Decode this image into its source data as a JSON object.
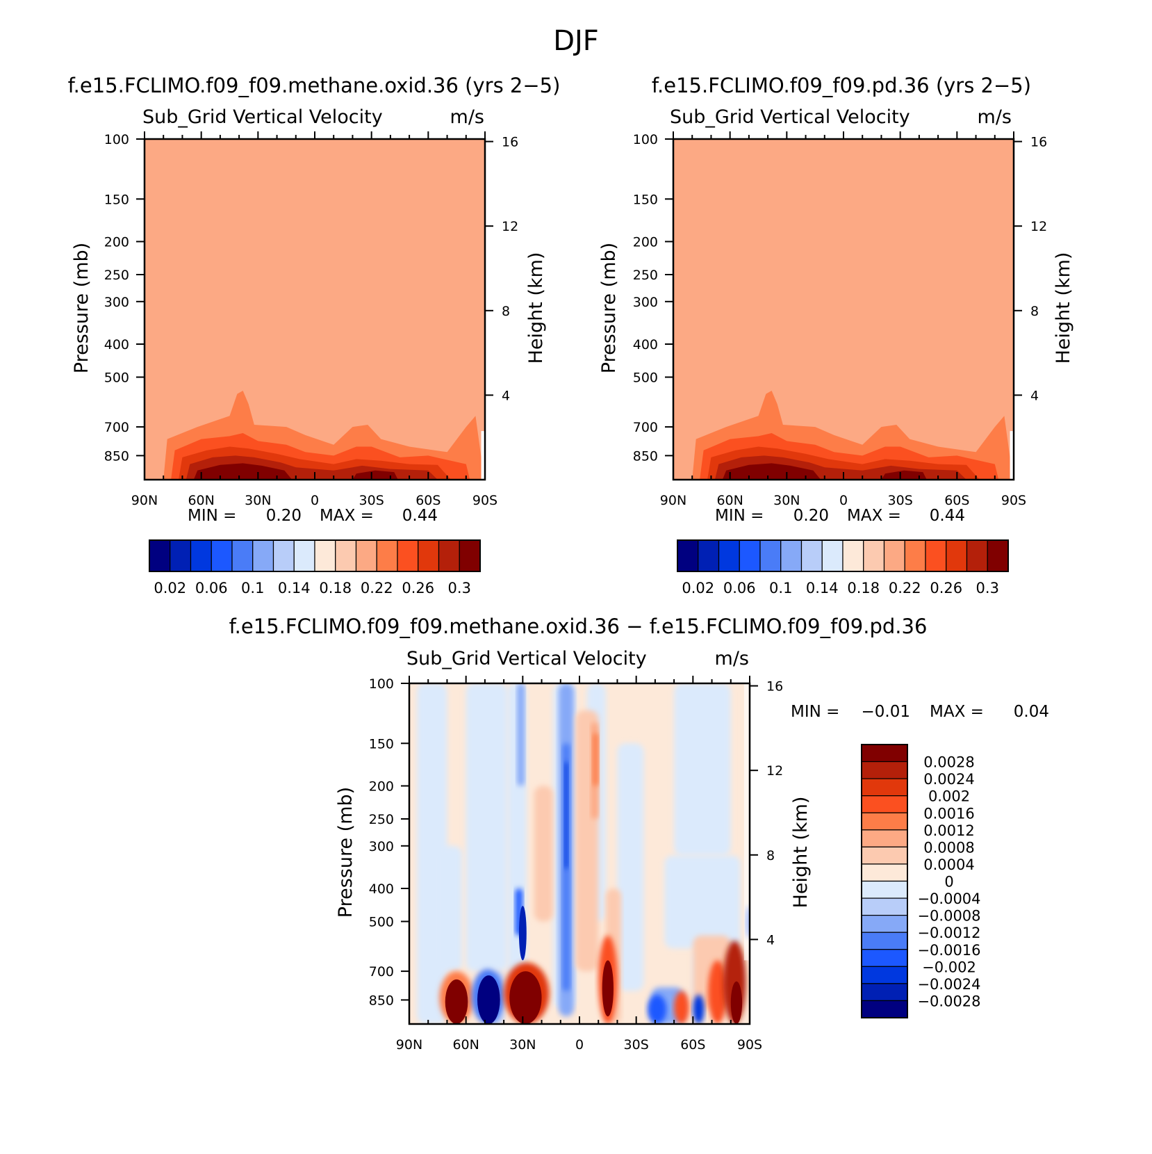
{
  "figure": {
    "title": "DJF"
  },
  "colors": {
    "palette16": [
      "#000080",
      "#0020b4",
      "#0038df",
      "#1c58ff",
      "#4a7cf7",
      "#86a9f7",
      "#b8cdf9",
      "#dbeafc",
      "#fde9d9",
      "#fccab0",
      "#fca984",
      "#fd7d48",
      "#fb5020",
      "#e1380c",
      "#b4200a",
      "#800000"
    ],
    "diff_palette": [
      "#000080",
      "#0020b4",
      "#0038df",
      "#1c58ff",
      "#4a7cf7",
      "#86a9f7",
      "#b8cdf9",
      "#dbeafc",
      "#fde9d9",
      "#fccab0",
      "#fca984",
      "#fd7d48",
      "#fb5020",
      "#e1380c",
      "#b4200a",
      "#800000"
    ],
    "background_fill": "#fca984"
  },
  "panels": [
    {
      "title": "f.e15.FCLIMO.f09_f09.methane.oxid.36 (yrs 2−5)",
      "variable": "Sub_Grid Vertical Velocity",
      "units": "m/s",
      "ylabel": "Pressure (mb)",
      "y2label": "Height (km)",
      "min_label": "MIN =",
      "min_value": "0.20",
      "max_label": "MAX =",
      "max_value": "0.44"
    },
    {
      "title": "f.e15.FCLIMO.f09_f09.pd.36 (yrs 2−5)",
      "variable": "Sub_Grid Vertical Velocity",
      "units": "m/s",
      "ylabel": "Pressure (mb)",
      "y2label": "Height (km)",
      "min_label": "MIN =",
      "min_value": "0.20",
      "max_label": "MAX =",
      "max_value": "0.44"
    },
    {
      "title": "f.e15.FCLIMO.f09_f09.methane.oxid.36 − f.e15.FCLIMO.f09_f09.pd.36",
      "variable": "Sub_Grid Vertical Velocity",
      "units": "m/s",
      "ylabel": "Pressure (mb)",
      "y2label": "Height (km)",
      "min_label": "MIN =",
      "min_value": "−0.01",
      "max_label": "MAX =",
      "max_value": "0.04"
    }
  ],
  "chart_data": [
    {
      "type": "heatmap",
      "title": "f.e15.FCLIMO.f09_f09.methane.oxid.36 (yrs 2−5)",
      "subtitle": "Sub_Grid Vertical Velocity",
      "units": "m/s",
      "ylabel": "Pressure (mb)",
      "y2label": "Height (km)",
      "x_ticks": [
        "90N",
        "60N",
        "30N",
        "0",
        "30S",
        "60S",
        "90S"
      ],
      "y_ticks": [
        "100",
        "150",
        "200",
        "250",
        "300",
        "400",
        "500",
        "700",
        "850"
      ],
      "y2_ticks": [
        "16",
        "12",
        "8",
        "4"
      ],
      "y_scale": "log",
      "ylim": [
        100,
        1000
      ],
      "levels": [
        0.02,
        0.04,
        0.06,
        0.08,
        0.1,
        0.12,
        0.14,
        0.16,
        0.18,
        0.2,
        0.22,
        0.24,
        0.26,
        0.28,
        0.3
      ],
      "colorbar_labels": [
        "0.02",
        "0.06",
        "0.1",
        "0.14",
        "0.18",
        "0.22",
        "0.26",
        "0.3"
      ],
      "min": 0.2,
      "max": 0.44
    },
    {
      "type": "heatmap",
      "title": "f.e15.FCLIMO.f09_f09.pd.36 (yrs 2−5)",
      "subtitle": "Sub_Grid Vertical Velocity",
      "units": "m/s",
      "ylabel": "Pressure (mb)",
      "y2label": "Height (km)",
      "x_ticks": [
        "90N",
        "60N",
        "30N",
        "0",
        "30S",
        "60S",
        "90S"
      ],
      "y_ticks": [
        "100",
        "150",
        "200",
        "250",
        "300",
        "400",
        "500",
        "700",
        "850"
      ],
      "y2_ticks": [
        "16",
        "12",
        "8",
        "4"
      ],
      "y_scale": "log",
      "ylim": [
        100,
        1000
      ],
      "levels": [
        0.02,
        0.04,
        0.06,
        0.08,
        0.1,
        0.12,
        0.14,
        0.16,
        0.18,
        0.2,
        0.22,
        0.24,
        0.26,
        0.28,
        0.3
      ],
      "colorbar_labels": [
        "0.02",
        "0.06",
        "0.1",
        "0.14",
        "0.18",
        "0.22",
        "0.26",
        "0.3"
      ],
      "min": 0.2,
      "max": 0.44
    },
    {
      "type": "heatmap",
      "title": "f.e15.FCLIMO.f09_f09.methane.oxid.36 − f.e15.FCLIMO.f09_f09.pd.36",
      "subtitle": "Sub_Grid Vertical Velocity",
      "units": "m/s",
      "ylabel": "Pressure (mb)",
      "y2label": "Height (km)",
      "x_ticks": [
        "90N",
        "60N",
        "30N",
        "0",
        "30S",
        "60S",
        "90S"
      ],
      "y_ticks": [
        "100",
        "150",
        "200",
        "250",
        "300",
        "400",
        "500",
        "700",
        "850"
      ],
      "y2_ticks": [
        "16",
        "12",
        "8",
        "4"
      ],
      "y_scale": "log",
      "ylim": [
        100,
        1000
      ],
      "colorbar_labels": [
        "0.0028",
        "0.0024",
        "0.002",
        "0.0016",
        "0.0012",
        "0.0008",
        "0.0004",
        "0",
        "−0.0004",
        "−0.0008",
        "−0.0012",
        "−0.0016",
        "−0.002",
        "−0.0024",
        "−0.0028"
      ],
      "min": -0.01,
      "max": 0.04
    }
  ]
}
